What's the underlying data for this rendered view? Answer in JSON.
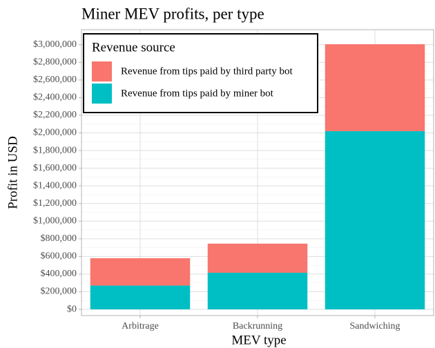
{
  "chart_data": {
    "type": "stacked_bar",
    "title": "Miner MEV profits, per type",
    "x_label": "MEV type",
    "y_label": "Profit in USD",
    "categories": [
      "Arbitrage",
      "Backrunning",
      "Sandwiching"
    ],
    "series": [
      {
        "name": "Revenue from tips paid by third party bot",
        "color": "#F8766D",
        "values": [
          310000,
          330000,
          985000
        ]
      },
      {
        "name": "Revenue from tips paid by miner bot",
        "color": "#00BFC4",
        "values": [
          270000,
          415000,
          2020000
        ]
      }
    ],
    "legend_title": "Revenue source",
    "legend_position": "top-left",
    "ylim": [
      -70000,
      3170000
    ],
    "yticks": [
      {
        "value": 0,
        "label": "$0"
      },
      {
        "value": 200000,
        "label": "$200,000"
      },
      {
        "value": 400000,
        "label": "$400,000"
      },
      {
        "value": 600000,
        "label": "$600,000"
      },
      {
        "value": 800000,
        "label": "$800,000"
      },
      {
        "value": 1000000,
        "label": "$1,000,000"
      },
      {
        "value": 1200000,
        "label": "$1,200,000"
      },
      {
        "value": 1400000,
        "label": "$1,400,000"
      },
      {
        "value": 1600000,
        "label": "$1,600,000"
      },
      {
        "value": 1800000,
        "label": "$1,800,000"
      },
      {
        "value": 2000000,
        "label": "$2,000,000"
      },
      {
        "value": 2200000,
        "label": "$2,200,000"
      },
      {
        "value": 2400000,
        "label": "$2,400,000"
      },
      {
        "value": 2600000,
        "label": "$2,600,000"
      },
      {
        "value": 2800000,
        "label": "$2,800,000"
      },
      {
        "value": 3000000,
        "label": "$3,000,000"
      }
    ],
    "grid": true
  }
}
